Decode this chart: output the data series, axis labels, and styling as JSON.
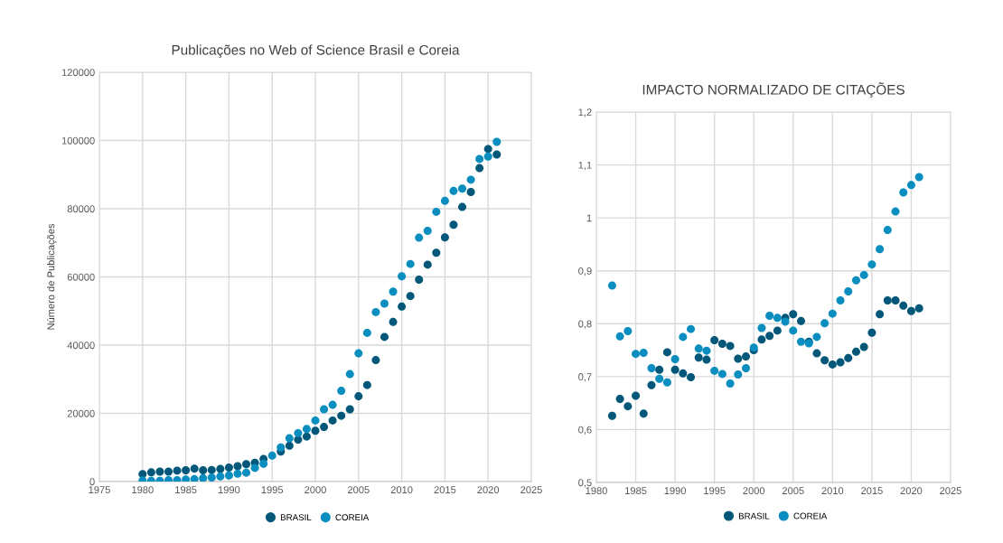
{
  "chart_data": [
    {
      "type": "scatter",
      "title": "Publicações no Web of Science Brasil e Coreia",
      "ylabel": "Número de Publicações",
      "x": [
        1980,
        1981,
        1982,
        1983,
        1984,
        1985,
        1986,
        1987,
        1988,
        1989,
        1990,
        1991,
        1992,
        1993,
        1994,
        1995,
        1996,
        1997,
        1998,
        1999,
        2000,
        2001,
        2002,
        2003,
        2004,
        2005,
        2006,
        2007,
        2008,
        2009,
        2010,
        2011,
        2012,
        2013,
        2014,
        2015,
        2016,
        2017,
        2018,
        2019,
        2020,
        2021
      ],
      "series": [
        {
          "name": "BRASIL",
          "color": "#03587a",
          "values": [
            2200,
            2700,
            2900,
            2900,
            3200,
            3300,
            3800,
            3300,
            3400,
            3700,
            4100,
            4500,
            5100,
            5500,
            6600,
            null,
            8800,
            10500,
            12300,
            13200,
            14900,
            16000,
            17900,
            19300,
            21200,
            25000,
            28300,
            35600,
            42400,
            46800,
            51300,
            54400,
            59200,
            63600,
            67100,
            71600,
            75300,
            80500,
            84900,
            91900,
            97500,
            95900
          ]
        },
        {
          "name": "COREIA",
          "color": "#0a8dbf",
          "values": [
            300,
            200,
            200,
            400,
            400,
            600,
            700,
            1000,
            1200,
            1500,
            1800,
            2300,
            2600,
            4000,
            5200,
            7600,
            10000,
            12700,
            14200,
            15400,
            17900,
            21200,
            22500,
            26600,
            31500,
            37600,
            43600,
            49700,
            52200,
            55700,
            60200,
            63800,
            71500,
            73500,
            79100,
            82300,
            85200,
            85900,
            88500,
            94600,
            95300,
            99600
          ]
        }
      ],
      "xlim": [
        1975,
        2025
      ],
      "xticks": [
        1975,
        1980,
        1985,
        1990,
        1995,
        2000,
        2005,
        2010,
        2015,
        2020,
        2025
      ],
      "ylim": [
        0,
        120000
      ],
      "yticks": [
        0,
        20000,
        40000,
        60000,
        80000,
        100000,
        120000
      ],
      "grid": true,
      "legend": "bottom",
      "marker": "circle"
    },
    {
      "type": "scatter",
      "title": "IMPACTO NORMALIZADO DE CITAÇÕES",
      "x": [
        1982,
        1983,
        1984,
        1985,
        1986,
        1987,
        1988,
        1989,
        1990,
        1991,
        1992,
        1993,
        1994,
        1995,
        1996,
        1997,
        1998,
        1999,
        2000,
        2001,
        2002,
        2003,
        2004,
        2005,
        2006,
        2007,
        2008,
        2009,
        2010,
        2011,
        2012,
        2013,
        2014,
        2015,
        2016,
        2017,
        2018,
        2019,
        2020,
        2021
      ],
      "series": [
        {
          "name": "BRASIL",
          "color": "#03587a",
          "values": [
            0.626,
            0.658,
            0.644,
            0.664,
            0.63,
            0.684,
            0.713,
            0.746,
            0.713,
            0.706,
            0.699,
            0.736,
            0.732,
            0.769,
            0.762,
            0.758,
            0.734,
            0.738,
            0.75,
            0.77,
            0.777,
            0.787,
            0.811,
            0.818,
            0.805,
            0.766,
            0.744,
            0.731,
            0.723,
            0.727,
            0.735,
            0.747,
            0.756,
            0.783,
            0.818,
            0.844,
            0.844,
            0.834,
            0.824,
            0.829
          ]
        },
        {
          "name": "COREIA",
          "color": "#0a8dbf",
          "values": [
            0.872,
            0.776,
            0.786,
            0.743,
            0.745,
            0.716,
            0.696,
            0.689,
            0.733,
            0.775,
            0.79,
            0.753,
            0.749,
            0.711,
            0.705,
            0.687,
            0.704,
            0.716,
            0.755,
            0.792,
            0.815,
            0.811,
            0.804,
            0.787,
            0.766,
            0.763,
            0.775,
            0.801,
            0.819,
            0.844,
            0.861,
            0.882,
            0.892,
            0.912,
            0.941,
            0.977,
            1.012,
            1.048,
            1.062,
            1.077
          ]
        }
      ],
      "xlim": [
        1980,
        2025
      ],
      "xticks": [
        1980,
        1985,
        1990,
        1995,
        2000,
        2005,
        2010,
        2015,
        2020,
        2025
      ],
      "ylim": [
        0.5,
        1.2
      ],
      "yticks": [
        {
          "value": 0.5,
          "label": "0,5"
        },
        {
          "value": 0.6,
          "label": "0,6"
        },
        {
          "value": 0.7,
          "label": "0,7"
        },
        {
          "value": 0.8,
          "label": "0,8"
        },
        {
          "value": 0.9,
          "label": "0,9"
        },
        {
          "value": 1,
          "label": "1"
        },
        {
          "value": 1.1,
          "label": "1,1"
        },
        {
          "value": 1.2,
          "label": "1,2"
        }
      ],
      "grid": true,
      "legend": "bottom",
      "marker": "circle"
    }
  ]
}
